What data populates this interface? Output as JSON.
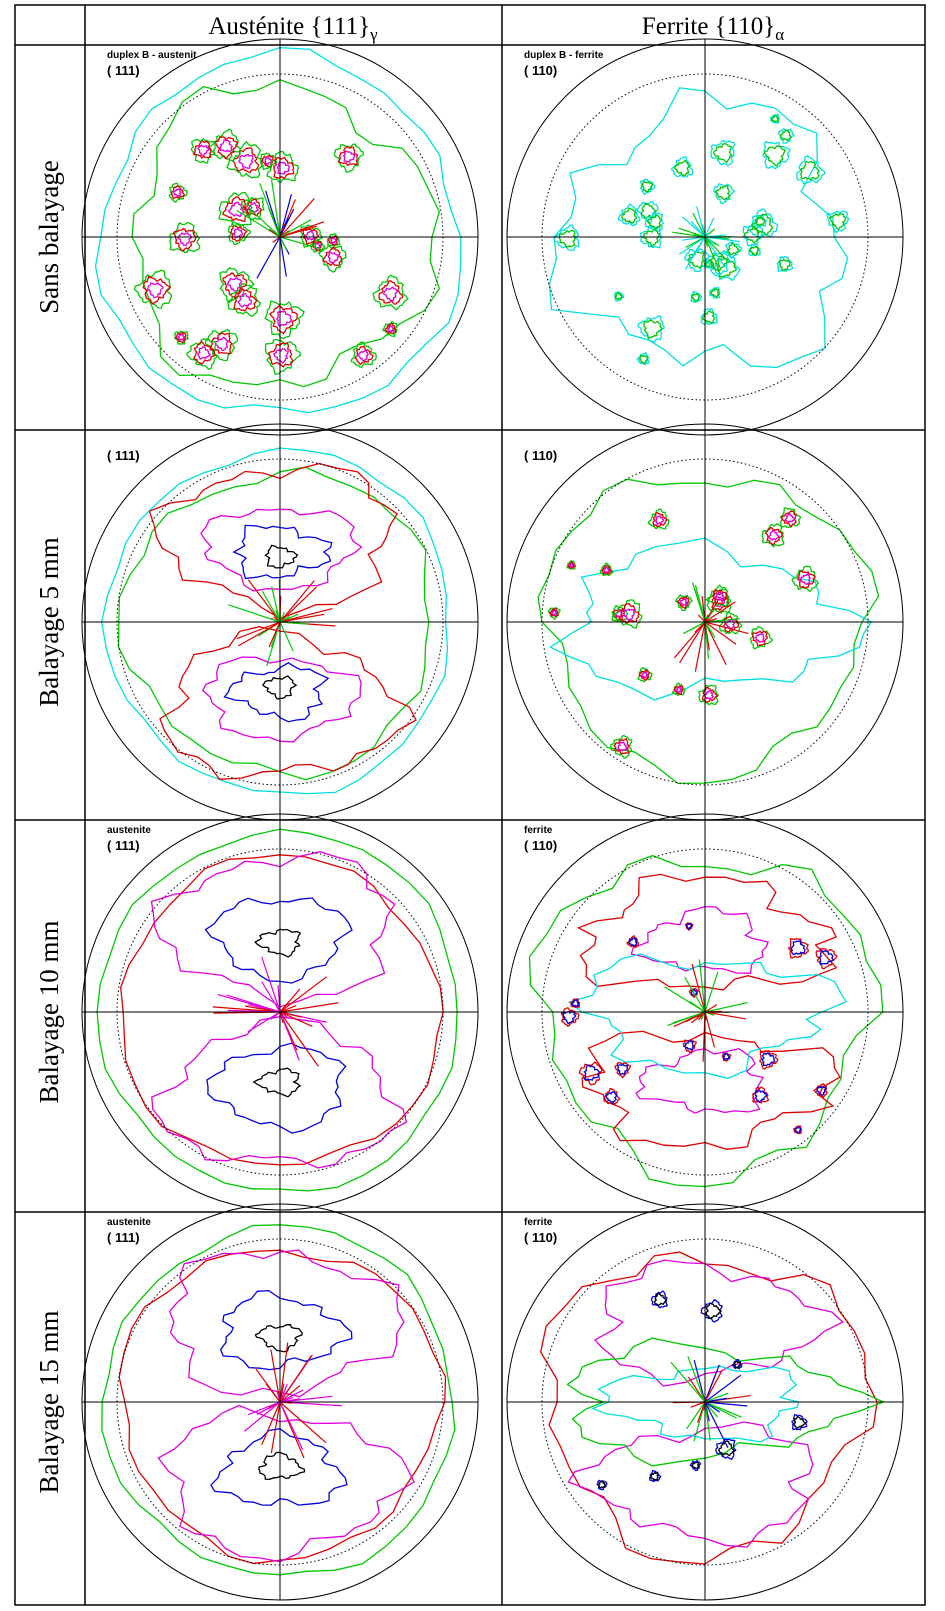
{
  "header": {
    "columns": [
      {
        "text": "Austénite {111}",
        "sub": "γ"
      },
      {
        "text": "Ferrite {110}",
        "sub": "α"
      }
    ]
  },
  "rows": [
    {
      "label": "Sans balayage",
      "cells": [
        {
          "caption": "duplex B - austenit",
          "index": "( 111)"
        },
        {
          "caption": "duplex B - ferrite",
          "index": "( 110)"
        }
      ]
    },
    {
      "label": "Balayage 5 mm",
      "cells": [
        {
          "index": "( 111)"
        },
        {
          "index": "( 110)"
        }
      ]
    },
    {
      "label": "Balayage 10 mm",
      "cells": [
        {
          "caption": "austenite",
          "index": "( 111)"
        },
        {
          "caption": "ferrite",
          "index": "( 110)"
        }
      ]
    },
    {
      "label": "Balayage 15 mm",
      "cells": [
        {
          "caption": "austenite",
          "index": "( 111)"
        },
        {
          "caption": "ferrite",
          "index": "( 110)"
        }
      ]
    }
  ]
}
